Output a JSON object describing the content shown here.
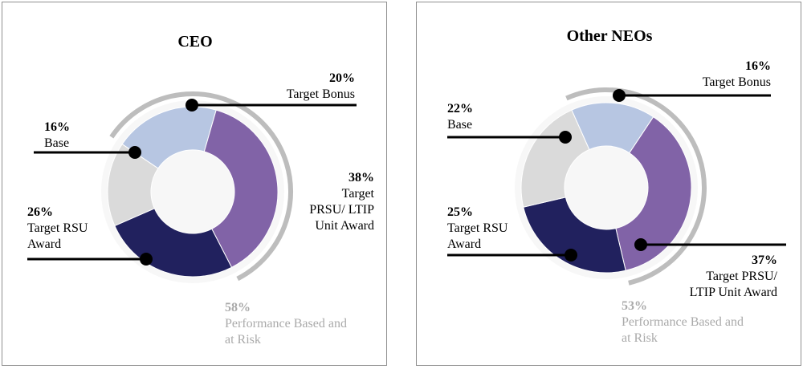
{
  "colors": {
    "base": "#dadada",
    "bonus": "#b7c6e2",
    "prsu": "#8163a7",
    "rsu": "#21215e",
    "arc": "#bdbdbd",
    "arc_text": "#aaaaaa"
  },
  "chart_data": [
    {
      "type": "pie",
      "title": "CEO",
      "donut": true,
      "slices": [
        {
          "pct": "20%",
          "label": [
            "Target Bonus"
          ],
          "value": 20
        },
        {
          "pct": "38%",
          "label": [
            "Target",
            "PRSU/ LTIP",
            "Unit Award"
          ],
          "value": 38
        },
        {
          "pct": "26%",
          "label": [
            "Target RSU",
            "Award"
          ],
          "value": 26
        },
        {
          "pct": "16%",
          "label": [
            "Base"
          ],
          "value": 16
        }
      ],
      "performance": {
        "pct": "58%",
        "label": [
          "Performance Based and",
          "at Risk"
        ],
        "value": 58
      }
    },
    {
      "type": "pie",
      "title": "Other NEOs",
      "donut": true,
      "slices": [
        {
          "pct": "16%",
          "label": [
            "Target Bonus"
          ],
          "value": 16
        },
        {
          "pct": "37%",
          "label": [
            "Target PRSU/",
            "LTIP Unit Award"
          ],
          "value": 37
        },
        {
          "pct": "25%",
          "label": [
            "Target RSU",
            "Award"
          ],
          "value": 25
        },
        {
          "pct": "22%",
          "label": [
            "Base"
          ],
          "value": 22
        }
      ],
      "performance": {
        "pct": "53%",
        "label": [
          "Performance Based and",
          "at Risk"
        ],
        "value": 53
      }
    }
  ]
}
